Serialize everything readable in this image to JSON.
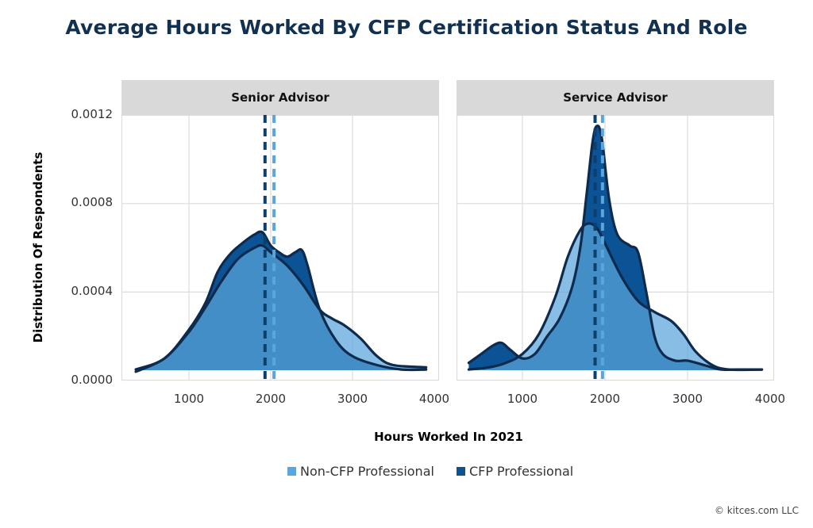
{
  "title": "Average Hours Worked By CFP Certification Status And Role",
  "colors": {
    "title": "#12304f",
    "non_cfp": "#5aa5dc",
    "cfp": "#0b5394",
    "outline": "#0e2a4d",
    "facet_header": "#d9d9d9",
    "grid": "#dcdcdc"
  },
  "axes": {
    "ylabel": "Distribution Of Respondents",
    "xlabel": "Hours Worked In 2021",
    "yticks": [
      "0.0012",
      "0.0008",
      "0.0004",
      "0.0000"
    ],
    "xticks": [
      "1000",
      "2000",
      "3000",
      "4000"
    ]
  },
  "legend": {
    "items": [
      {
        "label": "Non-CFP Professional",
        "color": "#5aa5dc"
      },
      {
        "label": "CFP Professional",
        "color": "#0b5394"
      }
    ]
  },
  "copyright": "© kitces.com LLC",
  "chart_data": {
    "type": "area",
    "title": "Average Hours Worked By CFP Certification Status And Role",
    "xlabel": "Hours Worked In 2021",
    "ylabel": "Distribution Of Respondents",
    "xlim": [
      175,
      4000
    ],
    "ylim": [
      0,
      0.0012
    ],
    "grid": true,
    "legend_position": "bottom",
    "facets": [
      {
        "label": "Senior Advisor",
        "series": [
          {
            "name": "Non-CFP Professional",
            "mean": 2040,
            "x": [
              350,
              700,
              1000,
              1200,
              1400,
              1600,
              1800,
              1900,
              2000,
              2200,
              2400,
              2600,
              2750,
              2900,
              3100,
              3300,
              3500,
              3900
            ],
            "y": [
              4e-05,
              0.0001,
              0.00022,
              0.00033,
              0.00045,
              0.00055,
              0.0006,
              0.00061,
              0.00058,
              0.00052,
              0.00043,
              0.00032,
              0.00028,
              0.00025,
              0.00019,
              0.00011,
              7e-05,
              6e-05
            ]
          },
          {
            "name": "CFP Professional",
            "mean": 1930,
            "x": [
              350,
              700,
              1000,
              1200,
              1350,
              1500,
              1650,
              1800,
              1900,
              2000,
              2100,
              2200,
              2300,
              2380,
              2450,
              2600,
              2800,
              3000,
              3300,
              3600,
              3900
            ],
            "y": [
              5e-05,
              0.0001,
              0.00023,
              0.00035,
              0.00049,
              0.00057,
              0.00062,
              0.00066,
              0.00067,
              0.00061,
              0.00058,
              0.00056,
              0.00058,
              0.00059,
              0.00052,
              0.00032,
              0.00018,
              0.00011,
              7e-05,
              5e-05,
              5e-05
            ]
          }
        ]
      },
      {
        "label": "Service Advisor",
        "series": [
          {
            "name": "Non-CFP Professional",
            "mean": 1970,
            "x": [
              350,
              600,
              800,
              1000,
              1200,
              1400,
              1550,
              1700,
              1800,
              1900,
              2000,
              2200,
              2400,
              2600,
              2800,
              2950,
              3100,
              3300,
              3500,
              3900
            ],
            "y": [
              5e-05,
              6e-05,
              8e-05,
              0.00012,
              0.00021,
              0.00038,
              0.00056,
              0.00068,
              0.00071,
              0.00069,
              0.00062,
              0.00047,
              0.00036,
              0.00031,
              0.00027,
              0.00021,
              0.00013,
              7e-05,
              5e-05,
              5e-05
            ]
          },
          {
            "name": "CFP Professional",
            "mean": 1880,
            "x": [
              350,
              500,
              650,
              750,
              850,
              1000,
              1150,
              1300,
              1450,
              1600,
              1700,
              1780,
              1850,
              1900,
              1960,
              2050,
              2150,
              2300,
              2400,
              2500,
              2600,
              2700,
              2850,
              3000,
              3200,
              3400,
              3600,
              3900
            ],
            "y": [
              8e-05,
              0.00012,
              0.00016,
              0.00017,
              0.00014,
              0.0001,
              0.00012,
              0.0002,
              0.00028,
              0.00042,
              0.0006,
              0.00085,
              0.00108,
              0.00115,
              0.0011,
              0.00082,
              0.00066,
              0.00061,
              0.00058,
              0.0004,
              0.0002,
              0.00012,
              9e-05,
              9e-05,
              7e-05,
              5e-05,
              5e-05,
              5e-05
            ]
          }
        ]
      }
    ]
  }
}
